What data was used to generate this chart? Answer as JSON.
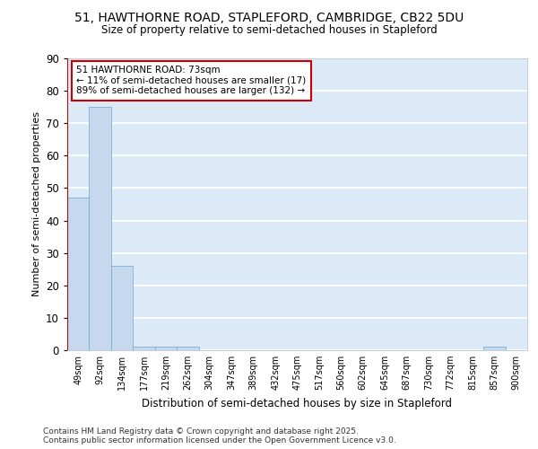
{
  "title_line1": "51, HAWTHORNE ROAD, STAPLEFORD, CAMBRIDGE, CB22 5DU",
  "title_line2": "Size of property relative to semi-detached houses in Stapleford",
  "xlabel": "Distribution of semi-detached houses by size in Stapleford",
  "ylabel": "Number of semi-detached properties",
  "bar_labels": [
    "49sqm",
    "92sqm",
    "134sqm",
    "177sqm",
    "219sqm",
    "262sqm",
    "304sqm",
    "347sqm",
    "389sqm",
    "432sqm",
    "475sqm",
    "517sqm",
    "560sqm",
    "602sqm",
    "645sqm",
    "687sqm",
    "730sqm",
    "772sqm",
    "815sqm",
    "857sqm",
    "900sqm"
  ],
  "bar_values": [
    47,
    75,
    26,
    1,
    1,
    1,
    0,
    0,
    0,
    0,
    0,
    0,
    0,
    0,
    0,
    0,
    0,
    0,
    0,
    1,
    0
  ],
  "bar_color": "#c5d8ee",
  "bar_edge_color": "#7bafd4",
  "bg_color": "#dce9f7",
  "grid_color": "#ffffff",
  "ylim": [
    0,
    90
  ],
  "yticks": [
    0,
    10,
    20,
    30,
    40,
    50,
    60,
    70,
    80,
    90
  ],
  "annotation_title": "51 HAWTHORNE ROAD: 73sqm",
  "annotation_line1": "← 11% of semi-detached houses are smaller (17)",
  "annotation_line2": "89% of semi-detached houses are larger (132) →",
  "annotation_box_color": "#cc0000",
  "vline_color": "#cc0000",
  "footer_line1": "Contains HM Land Registry data © Crown copyright and database right 2025.",
  "footer_line2": "Contains public sector information licensed under the Open Government Licence v3.0."
}
